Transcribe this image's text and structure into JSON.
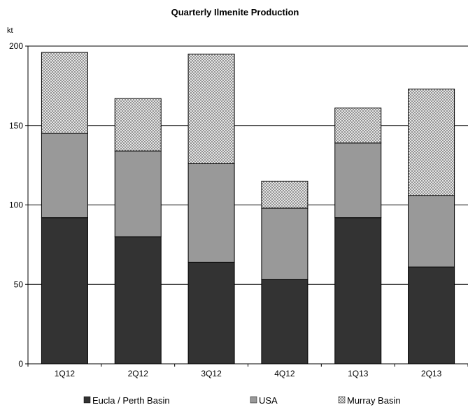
{
  "chart_data": {
    "type": "bar",
    "stacked": true,
    "title": "Quarterly Ilmenite Production",
    "ylabel": "kt",
    "xlabel": "",
    "ylim": [
      0,
      200
    ],
    "yticks": [
      0,
      50,
      100,
      150,
      200
    ],
    "grid": true,
    "legend_position": "bottom",
    "categories": [
      "1Q12",
      "2Q12",
      "3Q12",
      "4Q12",
      "1Q13",
      "2Q13"
    ],
    "series": [
      {
        "name": "Eucla / Perth Basin",
        "values": [
          92,
          80,
          64,
          53,
          92,
          61
        ],
        "color": "#333333",
        "pattern": "solid"
      },
      {
        "name": "USA",
        "values": [
          53,
          54,
          62,
          45,
          47,
          45
        ],
        "color": "#999999",
        "pattern": "solid"
      },
      {
        "name": "Murray Basin",
        "values": [
          51,
          33,
          69,
          17,
          22,
          67
        ],
        "color": "#d9d9d9",
        "pattern": "dotted"
      }
    ]
  }
}
